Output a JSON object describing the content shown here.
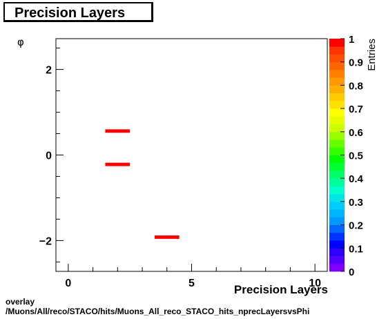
{
  "title": "Precision Layers",
  "footer": {
    "line1": "overlay",
    "line2": "/Muons/All/reco/STACO/hits/Muons_All_reco_STACO_hits_nprecLayersvsPhi"
  },
  "chart_data": {
    "type": "heatmap",
    "title": "Precision Layers",
    "xlabel": "Precision Layers",
    "ylabel": "φ",
    "zlabel": "Entries",
    "xlim": [
      -0.5,
      10.5
    ],
    "ylim": [
      -2.72,
      2.72
    ],
    "x_ticks": [
      0,
      5,
      10
    ],
    "y_ticks": [
      -2,
      0,
      2
    ],
    "z_ticks": [
      "0",
      "0.1",
      "0.2",
      "0.3",
      "0.4",
      "0.5",
      "0.6",
      "0.7",
      "0.8",
      "0.9",
      "1"
    ],
    "zlim": [
      0,
      1
    ],
    "bins": [
      {
        "x": [
          1.5,
          2.5
        ],
        "y": [
          0.52,
          0.6
        ],
        "value": 1
      },
      {
        "x": [
          1.5,
          2.5
        ],
        "y": [
          -0.26,
          -0.18
        ],
        "value": 1
      },
      {
        "x": [
          3.5,
          4.5
        ],
        "y": [
          -1.96,
          -1.88
        ],
        "value": 1
      }
    ],
    "palette": [
      "#7f00ff",
      "#5500ff",
      "#2b00ff",
      "#0000ff",
      "#0033ff",
      "#0066ff",
      "#0099ff",
      "#00b3ff",
      "#00ccff",
      "#00e6e6",
      "#00ffcc",
      "#00ff99",
      "#00ff66",
      "#00ff33",
      "#00ff00",
      "#33ff00",
      "#66ff00",
      "#99ff00",
      "#ccff00",
      "#e6ff00",
      "#ffff00",
      "#ffe000",
      "#ffcc00",
      "#ffb000",
      "#ff9900",
      "#ff8000",
      "#ff6600",
      "#ff4d00",
      "#ff3300",
      "#ff0000"
    ]
  }
}
